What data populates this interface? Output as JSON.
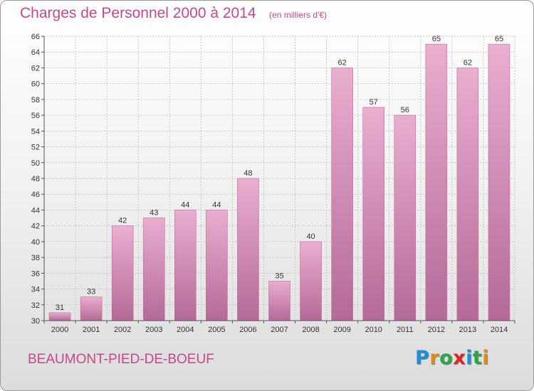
{
  "title": "Charges de Personnel 2000 à 2014",
  "subtitle": "(en milliers d'€)",
  "commune": "BEAUMONT-PIED-DE-BOEUF",
  "logo": {
    "letters": [
      {
        "char": "P",
        "color": "#1f8fd8"
      },
      {
        "char": "r",
        "color": "#e2891c"
      },
      {
        "char": "o",
        "color": "#2aa54a"
      },
      {
        "char": "x",
        "color": "#d8281f"
      },
      {
        "char": "i",
        "color": "#1f8fd8"
      },
      {
        "char": "t",
        "color": "#2aa54a"
      },
      {
        "char": "i",
        "color": "#e2891c"
      }
    ]
  },
  "colors": {
    "bar_top": "#e9aed0",
    "bar_bottom": "#b36a96",
    "bar_edge": "#c9669f",
    "grid": "#c8c8c8",
    "axis": "#555555",
    "title": "#c4488c"
  },
  "chart_data": {
    "type": "bar",
    "title": "Charges de Personnel 2000 à 2014",
    "subtitle": "(en milliers d'€)",
    "categories": [
      "2000",
      "2001",
      "2002",
      "2003",
      "2004",
      "2005",
      "2006",
      "2007",
      "2008",
      "2009",
      "2010",
      "2011",
      "2012",
      "2013",
      "2014"
    ],
    "values": [
      31,
      33,
      42,
      43,
      44,
      44,
      48,
      35,
      40,
      62,
      57,
      56,
      65,
      62,
      65
    ],
    "ylim": [
      30,
      66
    ],
    "yticks": [
      30,
      32,
      34,
      36,
      38,
      40,
      42,
      44,
      46,
      48,
      50,
      52,
      54,
      56,
      58,
      60,
      62,
      64,
      66
    ],
    "grid": true,
    "data_labels": true
  }
}
